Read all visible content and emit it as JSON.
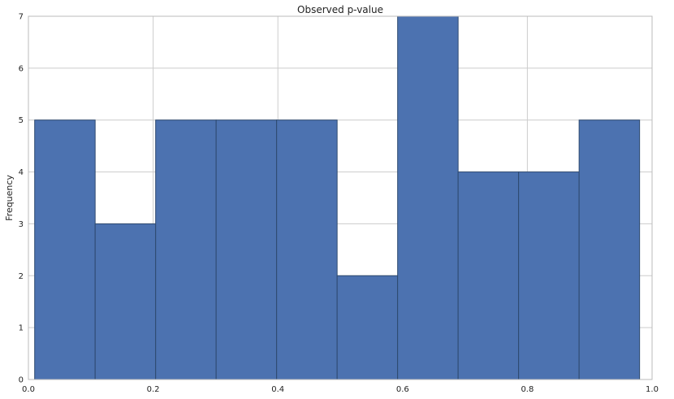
{
  "chart_data": {
    "type": "bar",
    "title": "Observed p-value",
    "xlabel": "",
    "ylabel": "Frequency",
    "xlim": [
      0.0,
      1.0
    ],
    "ylim": [
      0,
      7
    ],
    "xticks": [
      "0.0",
      "0.2",
      "0.4",
      "0.6",
      "0.8",
      "1.0"
    ],
    "yticks": [
      "0",
      "1",
      "2",
      "3",
      "4",
      "5",
      "6",
      "7"
    ],
    "bin_edges": [
      0.01,
      0.107,
      0.204,
      0.301,
      0.398,
      0.495,
      0.592,
      0.689,
      0.786,
      0.883,
      0.98
    ],
    "values": [
      5,
      3,
      5,
      5,
      5,
      2,
      7,
      4,
      4,
      5
    ],
    "grid": true,
    "colors": {
      "bar_fill": "#4c72b0",
      "bar_edge": "#2e4a70",
      "grid": "#cccccc",
      "frame": "#bbbbbb"
    }
  }
}
